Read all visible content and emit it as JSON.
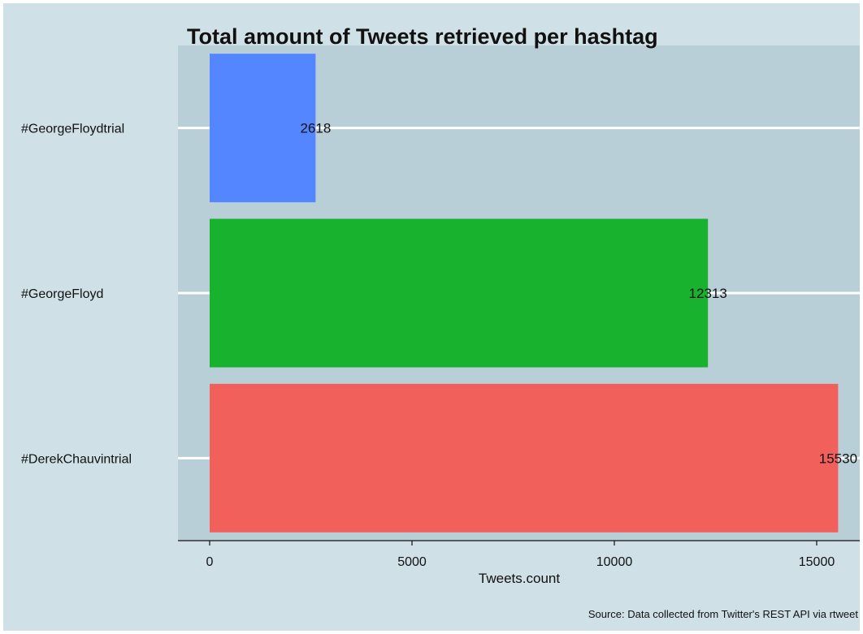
{
  "chart_data": {
    "type": "bar",
    "orientation": "horizontal",
    "title": "Total amount of Tweets retrieved per hashtag",
    "xlabel": "Tweets.count",
    "ylabel": "",
    "caption": "Source: Data collected from Twitter's REST API via rtweet",
    "categories": [
      "#GeorgeFloydtrial",
      "#GeorgeFloyd",
      "#DerekChauvintrial"
    ],
    "values": [
      2618,
      12313,
      15530
    ],
    "value_labels": [
      "2618",
      "12313",
      "15530"
    ],
    "bar_colors": [
      "#5487ff",
      "#19b22f",
      "#f2605c"
    ],
    "xticks": [
      0,
      5000,
      10000,
      15000
    ],
    "xtick_labels": [
      "0",
      "5000",
      "10000",
      "15000"
    ],
    "xlim": [
      -800,
      16300
    ],
    "grid": "horizontal major lines at categories",
    "legend": "none",
    "colors": {
      "background": "#cfe0e7",
      "panel": "#b9cfd8",
      "grid": "#ffffff"
    }
  }
}
